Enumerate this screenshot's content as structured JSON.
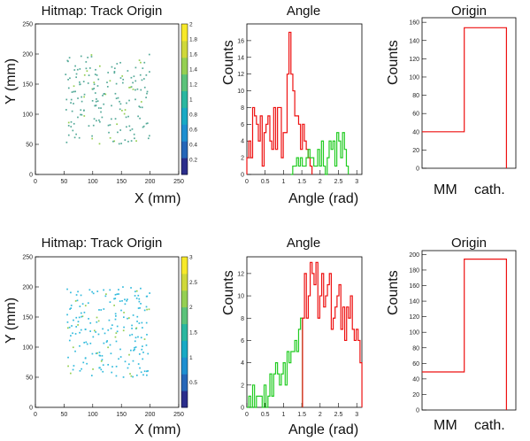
{
  "colors": {
    "frame": "#000000",
    "red": "#ee1111",
    "green": "#22cc22",
    "teal_dot": "#55aa99",
    "cyan_dot": "#33bbdd"
  },
  "rows": [
    {
      "hitmap": {
        "title": "Hitmap: Track Origin",
        "xlabel": "X (mm)",
        "ylabel": "Y (mm)",
        "xticks": [
          "0",
          "50",
          "100",
          "150",
          "200",
          "250"
        ],
        "yticks": [
          "0",
          "50",
          "100",
          "150",
          "200",
          "250"
        ],
        "zticks": [
          "0.2",
          "0.4",
          "0.6",
          "0.8",
          "1",
          "1.2",
          "1.4",
          "1.6",
          "1.8",
          "2"
        ],
        "zmax": 2
      },
      "angle": {
        "title": "Angle",
        "xlabel": "Angle (rad)",
        "ylabel": "Counts",
        "xticks": [
          "0",
          "0.5",
          "1",
          "1.5",
          "2",
          "2.5",
          "3"
        ],
        "yticks": [
          "0",
          "2",
          "4",
          "6",
          "8",
          "10",
          "12",
          "14",
          "16"
        ]
      },
      "origin": {
        "title": "Origin",
        "ylabel": "Counts",
        "categories": [
          "MM",
          "cath."
        ],
        "yticks": [
          "0",
          "20",
          "40",
          "60",
          "80",
          "100",
          "120",
          "140",
          "160"
        ]
      }
    },
    {
      "hitmap": {
        "title": "Hitmap: Track Origin",
        "xlabel": "X (mm)",
        "ylabel": "Y (mm)",
        "xticks": [
          "0",
          "50",
          "100",
          "150",
          "200",
          "250"
        ],
        "yticks": [
          "0",
          "50",
          "100",
          "150",
          "200",
          "250"
        ],
        "zticks": [
          "0.5",
          "1",
          "1.5",
          "2",
          "2.5",
          "3"
        ],
        "zmax": 3
      },
      "angle": {
        "title": "Angle",
        "xlabel": "Angle (rad)",
        "ylabel": "Counts",
        "xticks": [
          "0",
          "0.5",
          "1",
          "1.5",
          "2",
          "2.5",
          "3"
        ],
        "yticks": [
          "0",
          "2",
          "4",
          "6",
          "8",
          "10",
          "12"
        ]
      },
      "origin": {
        "title": "Origin",
        "ylabel": "Counts",
        "categories": [
          "MM",
          "cath."
        ],
        "yticks": [
          "0",
          "20",
          "40",
          "60",
          "80",
          "100",
          "120",
          "140",
          "160",
          "180",
          "200"
        ]
      }
    }
  ],
  "chart_data": [
    {
      "type": "scatter",
      "title": "Hitmap: Track Origin",
      "xlabel": "X (mm)",
      "ylabel": "Y (mm)",
      "xlim": [
        0,
        250
      ],
      "ylim": [
        0,
        250
      ],
      "zlim": [
        0,
        2
      ],
      "seed": 11,
      "n_points": 190,
      "region": {
        "x": [
          52,
          200
        ],
        "y": [
          50,
          200
        ]
      }
    },
    {
      "type": "line",
      "title": "Angle",
      "xlabel": "Angle (rad)",
      "ylabel": "Counts",
      "xlim": [
        0,
        3.14
      ],
      "ylim": [
        0,
        18
      ],
      "series": [
        {
          "color": "red",
          "x0": 0.0,
          "dx": 0.0523,
          "values": [
            2,
            4,
            2,
            8,
            7,
            6,
            4,
            7,
            1,
            5,
            6,
            7,
            4,
            3,
            8,
            3,
            8,
            8,
            2,
            5,
            5,
            12,
            17,
            12,
            10,
            7,
            7,
            6,
            3,
            6,
            4,
            3,
            2,
            1
          ]
        },
        {
          "color": "green",
          "x0": 1.2,
          "dx": 0.0523,
          "values": [
            0,
            1,
            1,
            2,
            1,
            2,
            1,
            1,
            2,
            3,
            2,
            2,
            1,
            1,
            3,
            1,
            4,
            1,
            0,
            2,
            4,
            3,
            4,
            1,
            5,
            4,
            2,
            5,
            3,
            1
          ]
        }
      ]
    },
    {
      "type": "bar",
      "title": "Origin",
      "ylabel": "Counts",
      "categories": [
        "MM",
        "cath."
      ],
      "values": [
        40,
        154
      ],
      "ylim": [
        0,
        165
      ]
    },
    {
      "type": "scatter",
      "title": "Hitmap: Track Origin",
      "xlabel": "X (mm)",
      "ylabel": "Y (mm)",
      "xlim": [
        0,
        250
      ],
      "ylim": [
        0,
        250
      ],
      "zlim": [
        0,
        3
      ],
      "seed": 29,
      "n_points": 210,
      "region": {
        "x": [
          55,
          200
        ],
        "y": [
          50,
          200
        ]
      }
    },
    {
      "type": "line",
      "title": "Angle",
      "xlabel": "Angle (rad)",
      "ylabel": "Counts",
      "xlim": [
        0,
        3.14
      ],
      "ylim": [
        0,
        13.5
      ],
      "series": [
        {
          "color": "green",
          "x0": 0.0,
          "dx": 0.0523,
          "values": [
            0,
            1,
            0,
            2,
            0,
            1,
            1,
            1,
            0,
            2,
            0,
            1,
            3,
            1,
            3,
            4,
            3,
            2,
            3,
            4,
            2,
            5,
            4,
            5,
            5,
            6,
            5,
            7,
            8
          ]
        },
        {
          "color": "red",
          "x0": 1.52,
          "dx": 0.0523,
          "values": [
            8,
            12,
            8,
            10,
            13,
            12,
            11,
            13,
            8,
            10,
            12,
            9,
            10,
            11,
            12,
            7,
            8,
            9,
            10,
            11,
            7,
            9,
            6,
            9,
            8,
            10,
            7,
            6,
            7,
            6,
            4
          ]
        }
      ]
    },
    {
      "type": "bar",
      "title": "Origin",
      "ylabel": "Counts",
      "categories": [
        "MM",
        "cath."
      ],
      "values": [
        49,
        194
      ],
      "ylim": [
        0,
        205
      ]
    }
  ]
}
